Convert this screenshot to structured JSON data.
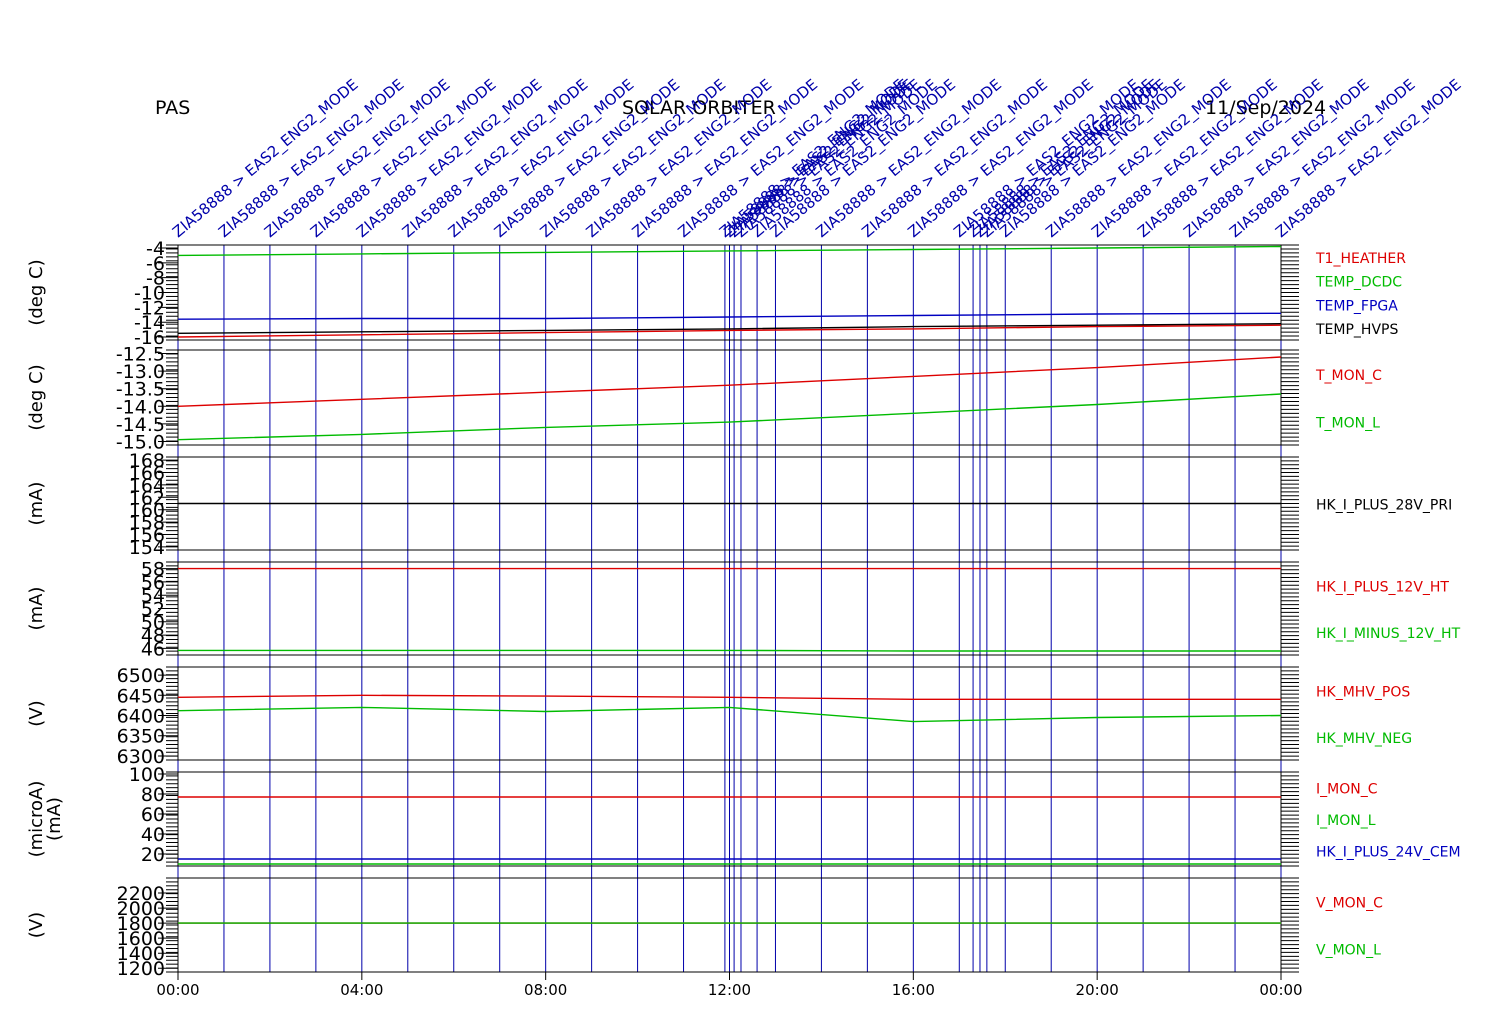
{
  "header": {
    "left": "PAS",
    "center": "SOLAR ORBITER",
    "right": "11/Sep/2024"
  },
  "colors": {
    "red": "#dd0000",
    "green": "#00bb00",
    "blue": "#0000c0",
    "black": "#000000",
    "event": "#0000aa"
  },
  "events": {
    "label": "ZIA58888 > EAS2_ENG2_MODE",
    "hours": [
      0.0,
      1.0,
      2.0,
      3.0,
      4.0,
      5.0,
      6.0,
      7.0,
      8.0,
      9.0,
      10.0,
      11.0,
      11.9,
      12.0,
      12.1,
      12.25,
      12.6,
      13.0,
      14.0,
      15.0,
      16.0,
      17.0,
      17.3,
      17.45,
      17.6,
      18.0,
      19.0,
      20.0,
      21.0,
      22.0,
      23.0,
      24.0
    ]
  },
  "chart_data": {
    "type": "line",
    "x_axis": {
      "unit": "hours",
      "range": [
        0,
        24
      ],
      "ticks": [
        "00:00",
        "04:00",
        "08:00",
        "12:00",
        "16:00",
        "20:00",
        "00:00"
      ]
    },
    "panels": [
      {
        "ylabel": "(deg C)",
        "ylim": [
          -16.4,
          -3.6
        ],
        "ticks": [
          -4,
          -6,
          -8,
          -10,
          -12,
          -14,
          -16
        ],
        "tick_labels": [
          "-4",
          "-6",
          "-8",
          "-10",
          "-12",
          "-14",
          "-16"
        ],
        "series": [
          {
            "name": "T1_HEATHER",
            "color": "#dd0000",
            "values": [
              -16.0,
              -15.7,
              -15.4,
              -15.1,
              -14.9,
              -14.6,
              -14.4
            ]
          },
          {
            "name": "TEMP_DCDC",
            "color": "#00bb00",
            "values": [
              -5.0,
              -4.8,
              -4.6,
              -4.4,
              -4.2,
              -4.0,
              -3.8
            ]
          },
          {
            "name": "TEMP_FPGA",
            "color": "#0000c0",
            "values": [
              -13.6,
              -13.5,
              -13.5,
              -13.3,
              -13.1,
              -12.9,
              -12.8
            ]
          },
          {
            "name": "TEMP_HVPS",
            "color": "#000000",
            "values": [
              -15.5,
              -15.3,
              -15.1,
              -14.9,
              -14.6,
              -14.4,
              -14.2
            ]
          }
        ]
      },
      {
        "ylabel": "(deg C)",
        "ylim": [
          -15.1,
          -12.4
        ],
        "ticks": [
          -12.5,
          -13.0,
          -13.5,
          -14.0,
          -14.5,
          -15.0
        ],
        "tick_labels": [
          "-12.5",
          "-13.0",
          "-13.5",
          "-14.0",
          "-14.5",
          "-15.0"
        ],
        "series": [
          {
            "name": "T_MON_C",
            "color": "#dd0000",
            "values": [
              -14.0,
              -13.8,
              -13.6,
              -13.4,
              -13.15,
              -12.9,
              -12.6
            ]
          },
          {
            "name": "T_MON_L",
            "color": "#00bb00",
            "values": [
              -14.95,
              -14.8,
              -14.6,
              -14.45,
              -14.2,
              -13.95,
              -13.65
            ]
          }
        ]
      },
      {
        "ylabel": "(mA)",
        "ylim": [
          153.5,
          168.5
        ],
        "ticks": [
          168,
          166,
          164,
          162,
          160,
          158,
          156,
          154
        ],
        "tick_labels": [
          "168",
          "166",
          "164",
          "162",
          "160",
          "158",
          "156",
          "154"
        ],
        "series": [
          {
            "name": "HK_I_PLUS_28V_PRI",
            "color": "#000000",
            "values": [
              161.0,
              161.0,
              161.0,
              161.0,
              161.0,
              161.0,
              161.0
            ]
          }
        ]
      },
      {
        "ylabel": "(mA)",
        "ylim": [
          45,
          59
        ],
        "ticks": [
          58,
          56,
          54,
          52,
          50,
          48,
          46
        ],
        "tick_labels": [
          "58",
          "56",
          "54",
          "52",
          "50",
          "48",
          "46"
        ],
        "series": [
          {
            "name": "HK_I_PLUS_12V_HT",
            "color": "#dd0000",
            "values": [
              58.0,
              58.0,
              58.0,
              58.0,
              58.0,
              58.0,
              58.0
            ]
          },
          {
            "name": "HK_I_MINUS_12V_HT",
            "color": "#00bb00",
            "values": [
              45.7,
              45.7,
              45.7,
              45.7,
              45.6,
              45.6,
              45.6
            ]
          }
        ]
      },
      {
        "ylabel": "(V)",
        "ylim": [
          6290,
          6520
        ],
        "ticks": [
          6500,
          6450,
          6400,
          6350,
          6300
        ],
        "tick_labels": [
          "6500",
          "6450",
          "6400",
          "6350",
          "6300"
        ],
        "series": [
          {
            "name": "HK_MHV_POS",
            "color": "#dd0000",
            "values": [
              6445,
              6450,
              6448,
              6445,
              6440,
              6440,
              6440
            ]
          },
          {
            "name": "HK_MHV_NEG",
            "color": "#00bb00",
            "values": [
              6412,
              6420,
              6410,
              6420,
              6385,
              6395,
              6400
            ]
          }
        ]
      },
      {
        "ylabel": "(microA)",
        "ylabel2": "(mA)",
        "ylim": [
          8,
          102
        ],
        "ticks": [
          100,
          80,
          60,
          40,
          20
        ],
        "tick_labels": [
          "100",
          "80",
          "60",
          "40",
          "20"
        ],
        "series": [
          {
            "name": "I_MON_C",
            "color": "#dd0000",
            "values": [
              77,
              77,
              77,
              77,
              77,
              77,
              77
            ]
          },
          {
            "name": "I_MON_L",
            "color": "#00bb00",
            "values": [
              10,
              10,
              10,
              10,
              10,
              10,
              10
            ]
          },
          {
            "name": "HK_I_PLUS_24V_CEM",
            "color": "#0000c0",
            "values": [
              15,
              15,
              15,
              15,
              15,
              15,
              15
            ]
          }
        ]
      },
      {
        "ylabel": "(V)",
        "ylim": [
          1150,
          2400
        ],
        "ticks": [
          2200,
          2000,
          1800,
          1600,
          1400,
          1200
        ],
        "tick_labels": [
          "2200",
          "2000",
          "1800",
          "1600",
          "1400",
          "1200"
        ],
        "series": [
          {
            "name": "V_MON_C",
            "color": "#dd0000",
            "values": [
              1800,
              1800,
              1800,
              1800,
              1800,
              1800,
              1800
            ]
          },
          {
            "name": "V_MON_L",
            "color": "#00bb00",
            "values": [
              1800,
              1800,
              1800,
              1800,
              1800,
              1800,
              1800
            ]
          }
        ]
      }
    ]
  }
}
